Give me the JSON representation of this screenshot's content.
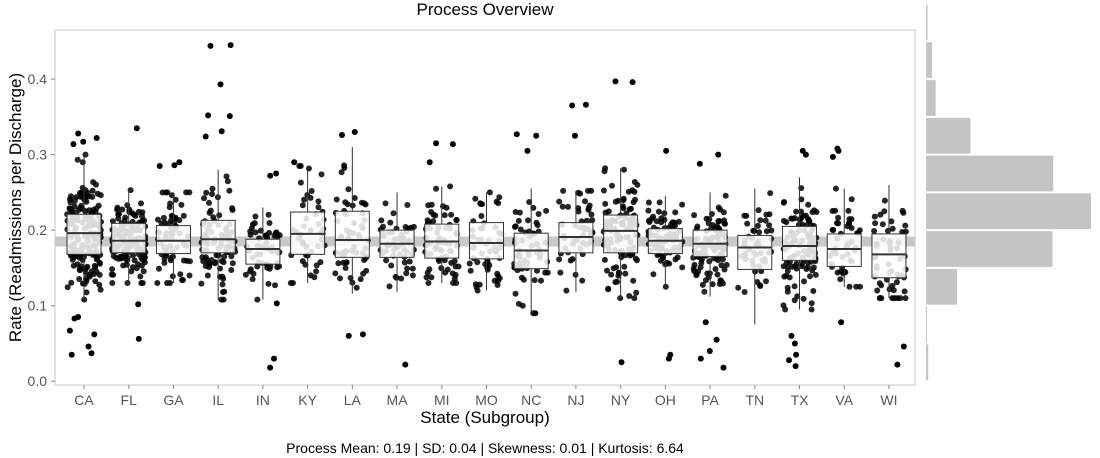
{
  "chart_data": {
    "type": "boxplot",
    "title": "Process Overview",
    "xlabel": "State (Subgroup)",
    "ylabel": "Rate (Readmissions per Discharge)",
    "caption": "Process Mean: 0.19 | SD: 0.04 | Skewness: 0.01 | Kurtosis: 6.64",
    "ylim": [
      -0.005,
      0.465
    ],
    "yticks": [
      0.0,
      0.1,
      0.2,
      0.3,
      0.4
    ],
    "ytick_labels": [
      "0.0",
      "0.1",
      "0.2",
      "0.3",
      "0.4"
    ],
    "process_mean": 0.185,
    "grid": false,
    "categories": [
      "CA",
      "FL",
      "GA",
      "IL",
      "IN",
      "KY",
      "LA",
      "MA",
      "MI",
      "MO",
      "NC",
      "NJ",
      "NY",
      "OH",
      "PA",
      "TN",
      "TX",
      "VA",
      "WI"
    ],
    "boxes": [
      {
        "q1": 0.168,
        "median": 0.196,
        "q3": 0.221,
        "whisker_low": 0.108,
        "whisker_high": 0.3
      },
      {
        "q1": 0.17,
        "median": 0.186,
        "q3": 0.209,
        "whisker_low": 0.13,
        "whisker_high": 0.253
      },
      {
        "q1": 0.169,
        "median": 0.186,
        "q3": 0.206,
        "whisker_low": 0.13,
        "whisker_high": 0.25
      },
      {
        "q1": 0.17,
        "median": 0.188,
        "q3": 0.213,
        "whisker_low": 0.108,
        "whisker_high": 0.28
      },
      {
        "q1": 0.155,
        "median": 0.175,
        "q3": 0.188,
        "whisker_low": 0.108,
        "whisker_high": 0.23
      },
      {
        "q1": 0.168,
        "median": 0.195,
        "q3": 0.224,
        "whisker_low": 0.13,
        "whisker_high": 0.285
      },
      {
        "q1": 0.164,
        "median": 0.187,
        "q3": 0.225,
        "whisker_low": 0.116,
        "whisker_high": 0.31
      },
      {
        "q1": 0.164,
        "median": 0.182,
        "q3": 0.2,
        "whisker_low": 0.118,
        "whisker_high": 0.25
      },
      {
        "q1": 0.163,
        "median": 0.185,
        "q3": 0.208,
        "whisker_low": 0.13,
        "whisker_high": 0.258
      },
      {
        "q1": 0.162,
        "median": 0.183,
        "q3": 0.21,
        "whisker_low": 0.12,
        "whisker_high": 0.25
      },
      {
        "q1": 0.149,
        "median": 0.173,
        "q3": 0.196,
        "whisker_low": 0.09,
        "whisker_high": 0.255
      },
      {
        "q1": 0.17,
        "median": 0.191,
        "q3": 0.21,
        "whisker_low": 0.118,
        "whisker_high": 0.252
      },
      {
        "q1": 0.17,
        "median": 0.199,
        "q3": 0.22,
        "whisker_low": 0.11,
        "whisker_high": 0.282
      },
      {
        "q1": 0.169,
        "median": 0.186,
        "q3": 0.202,
        "whisker_low": 0.125,
        "whisker_high": 0.245
      },
      {
        "q1": 0.165,
        "median": 0.182,
        "q3": 0.2,
        "whisker_low": 0.112,
        "whisker_high": 0.25
      },
      {
        "q1": 0.148,
        "median": 0.177,
        "q3": 0.193,
        "whisker_low": 0.075,
        "whisker_high": 0.255
      },
      {
        "q1": 0.16,
        "median": 0.179,
        "q3": 0.205,
        "whisker_low": 0.095,
        "whisker_high": 0.27
      },
      {
        "q1": 0.152,
        "median": 0.175,
        "q3": 0.195,
        "whisker_low": 0.125,
        "whisker_high": 0.255
      },
      {
        "q1": 0.137,
        "median": 0.168,
        "q3": 0.195,
        "whisker_low": 0.11,
        "whisker_high": 0.26
      }
    ],
    "jitter_counts": [
      170,
      140,
      70,
      90,
      55,
      45,
      60,
      55,
      70,
      55,
      60,
      50,
      110,
      80,
      100,
      50,
      110,
      50,
      55
    ],
    "outliers": [
      [
        0.328,
        0.322,
        0.317,
        0.314,
        0.035,
        0.037,
        0.046,
        0.062,
        0.067,
        0.083,
        0.085
      ],
      [
        0.335,
        0.056,
        0.102
      ],
      [
        0.29,
        0.286,
        0.285
      ],
      [
        0.445,
        0.444,
        0.393,
        0.352,
        0.351,
        0.331,
        0.324
      ],
      [
        0.275,
        0.272,
        0.03,
        0.018,
        0.103
      ],
      [
        0.29
      ],
      [
        0.33,
        0.326,
        0.062,
        0.06
      ],
      [
        0.022
      ],
      [
        0.315,
        0.314,
        0.29
      ],
      [],
      [
        0.327,
        0.325,
        0.305,
        0.09
      ],
      [
        0.366,
        0.365,
        0.325
      ],
      [
        0.397,
        0.396,
        0.025
      ],
      [
        0.305,
        0.035,
        0.03
      ],
      [
        0.3,
        0.288,
        0.078,
        0.055,
        0.04,
        0.03,
        0.018
      ],
      [],
      [
        0.305,
        0.3,
        0.06,
        0.05,
        0.035,
        0.028,
        0.02
      ],
      [
        0.308,
        0.305,
        0.297,
        0.078
      ],
      [
        0.022,
        0.046
      ]
    ],
    "histogram": {
      "bin_edges": [
        0.0,
        0.05,
        0.1,
        0.15,
        0.2,
        0.25,
        0.3,
        0.35,
        0.4,
        0.45,
        0.5
      ],
      "counts": [
        3,
        1,
        42,
        171,
        223,
        172,
        60,
        13,
        8,
        2
      ]
    }
  }
}
